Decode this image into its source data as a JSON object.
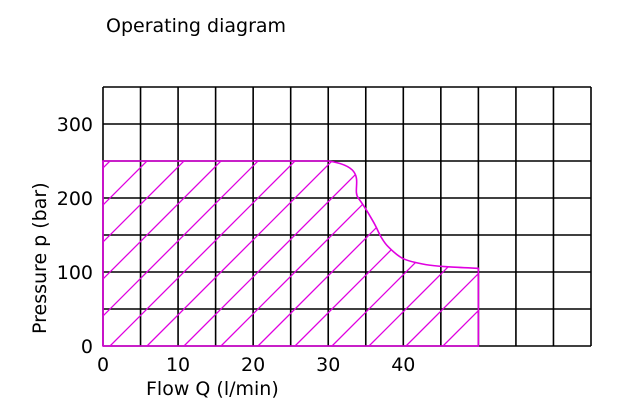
{
  "chart_data": {
    "type": "area",
    "title": "Operating diagram",
    "xlabel": "Flow Q (l/min)",
    "ylabel": "Pressure p (bar)",
    "xlim": [
      0,
      65
    ],
    "ylim": [
      0,
      350
    ],
    "xticks": [
      0,
      10,
      20,
      30,
      40
    ],
    "yticks": [
      0,
      100,
      200,
      300
    ],
    "x_grid_step": 5,
    "y_grid_step": 50,
    "grid": true,
    "legend": "none",
    "series": [
      {
        "x": [
          0,
          30,
          34,
          36,
          37,
          38,
          40,
          43,
          46,
          50
        ],
        "y": [
          250,
          250,
          200,
          168,
          148,
          134,
          118,
          110,
          107,
          105
        ]
      }
    ],
    "fill_pattern": "diagonal-hatch",
    "colors": {
      "region": "#e000e0",
      "grid": "#000000",
      "text": "#000000"
    }
  }
}
